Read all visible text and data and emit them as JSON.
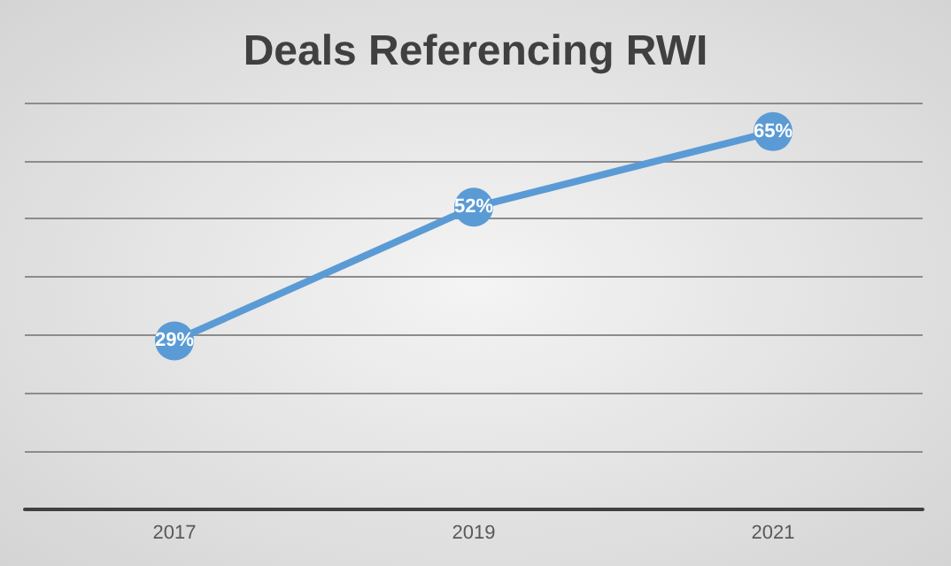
{
  "chart_data": {
    "type": "line",
    "title": "Deals Referencing RWI",
    "categories": [
      "2017",
      "2019",
      "2021"
    ],
    "series": [
      {
        "color": "#5b9bd5",
        "values": [
          29,
          52,
          65
        ],
        "value_labels": [
          "29%",
          "52%",
          "65%"
        ]
      }
    ],
    "ylim": [
      0,
      70
    ],
    "yticks": [
      {
        "value": 0,
        "label": null
      },
      {
        "value": 10,
        "label": null
      },
      {
        "value": 20,
        "label": null
      },
      {
        "value": 30,
        "label": null
      },
      {
        "value": 40,
        "label": null
      },
      {
        "value": 50,
        "label": null
      },
      {
        "value": 60,
        "label": null
      },
      {
        "value": 70,
        "label": null
      }
    ],
    "grid": "y",
    "tick_labels": "x",
    "marker": "circle",
    "line_style": "solid"
  }
}
